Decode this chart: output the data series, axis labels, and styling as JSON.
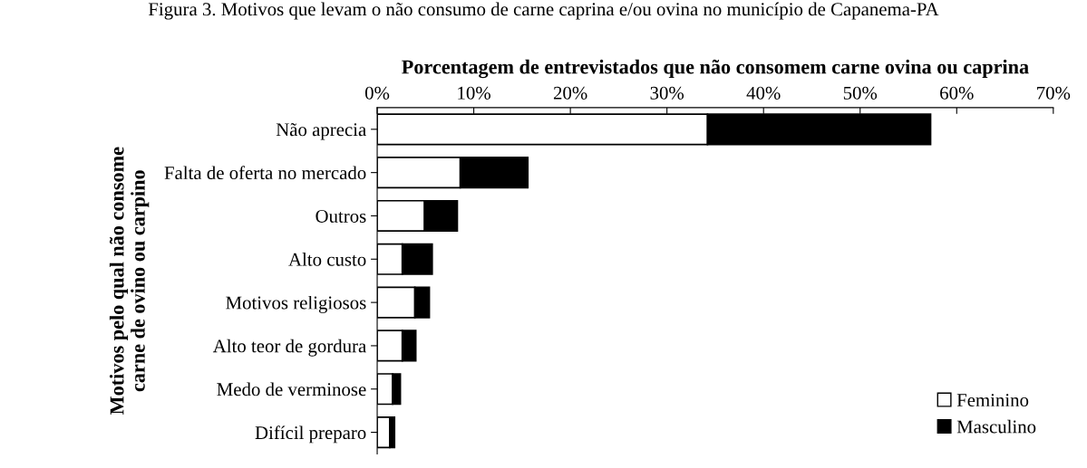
{
  "chart_data": {
    "type": "bar",
    "orientation": "horizontal",
    "stacked": true,
    "title": "Figura 3. Motivos que levam o não consumo de carne caprina e/ou ovina no município de Capanema-PA",
    "xlabel": "Porcentagem de entrevistados que não consomem carne ovina ou caprina",
    "ylabel": "Motivos pelo qual não consome\ncarne de ovino ou carpino",
    "categories": [
      "Não aprecia",
      "Falta de oferta no mercado",
      "Outros",
      "Alto custo",
      "Motivos religiosos",
      "Alto teor de gordura",
      "Medo de verminose",
      "Difícil preparo"
    ],
    "series": [
      {
        "name": "Feminino",
        "color": "#ffffff",
        "values": [
          34.2,
          8.6,
          4.9,
          2.6,
          3.9,
          2.6,
          1.6,
          1.3
        ]
      },
      {
        "name": "Masculino",
        "color": "#000000",
        "values": [
          23.1,
          7.0,
          3.4,
          3.1,
          1.5,
          1.4,
          0.8,
          0.5
        ]
      }
    ],
    "xlim": [
      0,
      70
    ],
    "xticks": [
      {
        "value": 0,
        "label": "0%"
      },
      {
        "value": 10,
        "label": "10%"
      },
      {
        "value": 20,
        "label": "20%"
      },
      {
        "value": 30,
        "label": "30%"
      },
      {
        "value": 40,
        "label": "40%"
      },
      {
        "value": 50,
        "label": "50%"
      },
      {
        "value": 60,
        "label": "60%"
      },
      {
        "value": 70,
        "label": "70%"
      }
    ],
    "legend": "bottom right",
    "grid": false
  }
}
